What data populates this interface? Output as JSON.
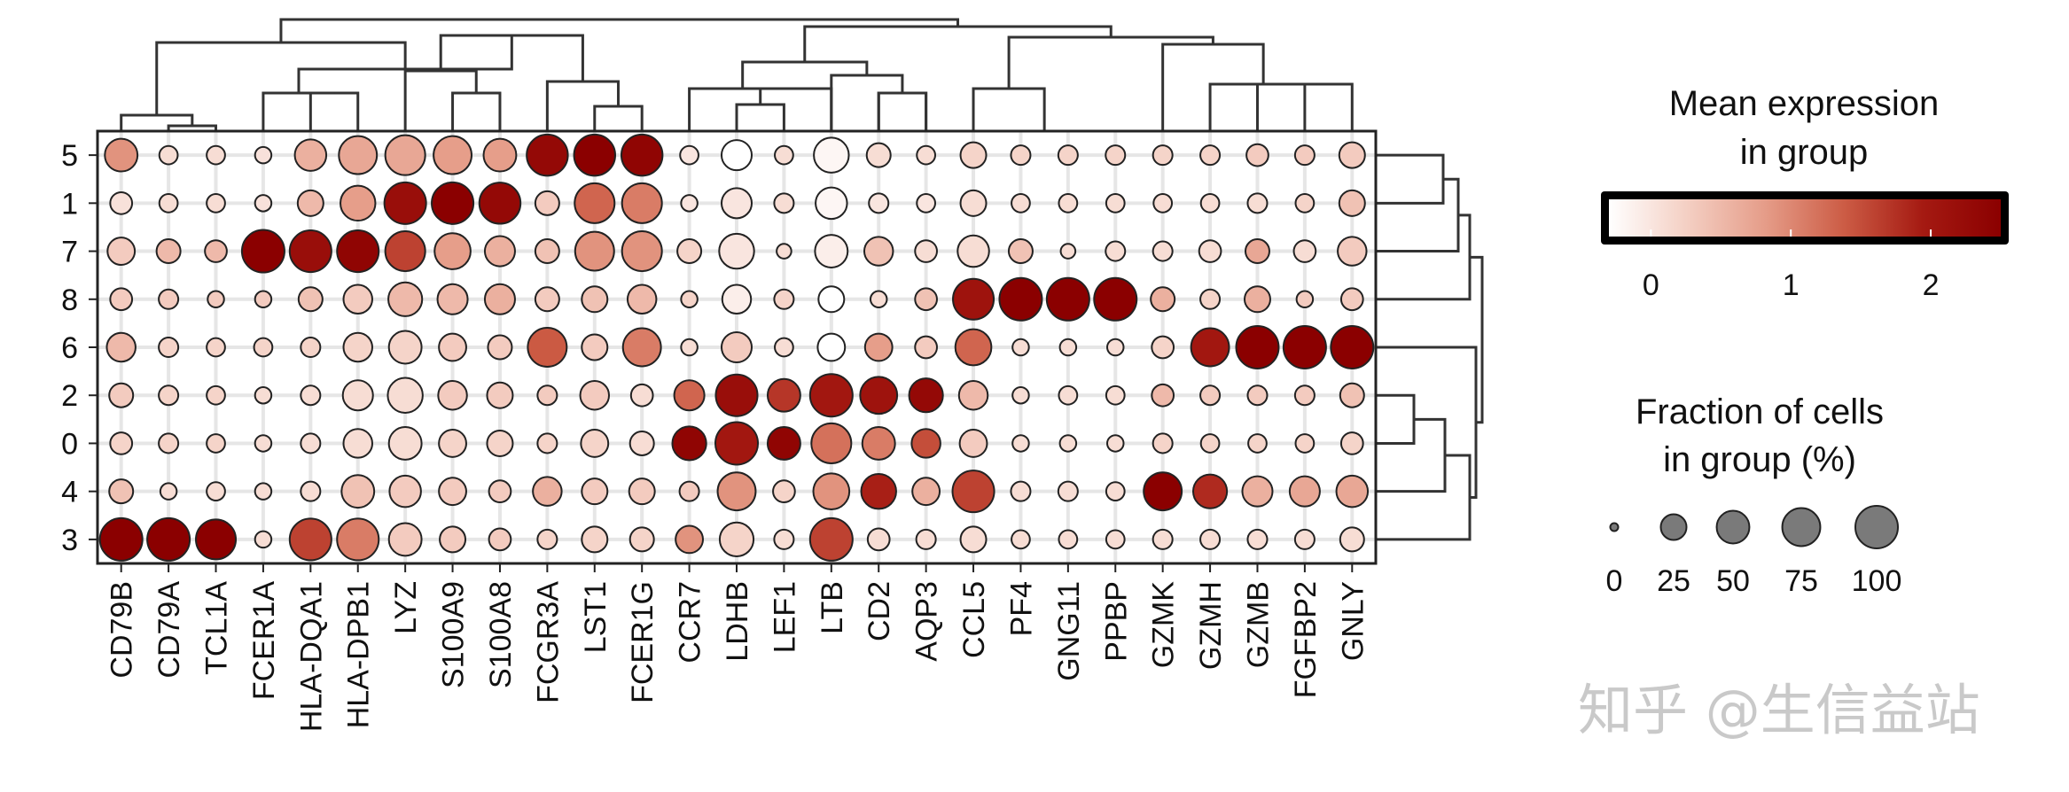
{
  "chart_data": {
    "type": "dotplot",
    "genes": [
      "CD79B",
      "CD79A",
      "TCL1A",
      "FCER1A",
      "HLA-DQA1",
      "HLA-DPB1",
      "LYZ",
      "S100A9",
      "S100A8",
      "FCGR3A",
      "LST1",
      "FCER1G",
      "CCR7",
      "LDHB",
      "LEF1",
      "LTB",
      "CD2",
      "AQP3",
      "CCL5",
      "PF4",
      "GNG11",
      "PPBP",
      "GZMK",
      "GZMH",
      "GZMB",
      "FGFBP2",
      "GNLY"
    ],
    "groups": [
      "5",
      "1",
      "7",
      "8",
      "6",
      "2",
      "0",
      "4",
      "3"
    ],
    "fraction_pct": [
      [
        50,
        8,
        8,
        5,
        45,
        75,
        85,
        75,
        50,
        92,
        92,
        92,
        8,
        40,
        8,
        60,
        20,
        8,
        25,
        10,
        10,
        10,
        10,
        10,
        15,
        10,
        25
      ],
      [
        15,
        8,
        8,
        5,
        25,
        60,
        95,
        95,
        92,
        20,
        85,
        85,
        5,
        40,
        10,
        45,
        10,
        8,
        25,
        8,
        8,
        8,
        8,
        8,
        10,
        8,
        25
      ],
      [
        30,
        20,
        15,
        100,
        95,
        95,
        85,
        65,
        40,
        20,
        80,
        85,
        20,
        60,
        3,
        50,
        35,
        15,
        45,
        20,
        3,
        10,
        10,
        15,
        20,
        15,
        35
      ],
      [
        15,
        10,
        5,
        5,
        20,
        35,
        55,
        40,
        40,
        20,
        25,
        35,
        5,
        35,
        10,
        25,
        5,
        15,
        90,
        100,
        100,
        100,
        20,
        10,
        25,
        5,
        15
      ],
      [
        35,
        10,
        8,
        8,
        10,
        35,
        50,
        30,
        20,
        80,
        25,
        75,
        5,
        40,
        8,
        30,
        30,
        15,
        65,
        5,
        5,
        5,
        15,
        75,
        100,
        100,
        100
      ],
      [
        20,
        10,
        8,
        5,
        10,
        40,
        60,
        35,
        25,
        10,
        35,
        15,
        40,
        95,
        50,
        100,
        70,
        55,
        35,
        5,
        8,
        8,
        15,
        10,
        10,
        10,
        20
      ],
      [
        15,
        10,
        8,
        5,
        10,
        35,
        50,
        30,
        25,
        10,
        30,
        20,
        55,
        100,
        50,
        85,
        50,
        35,
        30,
        5,
        5,
        5,
        10,
        8,
        8,
        8,
        15
      ],
      [
        20,
        5,
        8,
        5,
        10,
        50,
        45,
        30,
        15,
        35,
        25,
        25,
        10,
        75,
        15,
        65,
        60,
        30,
        95,
        10,
        10,
        8,
        75,
        55,
        40,
        40,
        45
      ],
      [
        100,
        100,
        85,
        5,
        95,
        95,
        50,
        25,
        15,
        10,
        25,
        20,
        30,
        55,
        10,
        100,
        15,
        10,
        25,
        8,
        8,
        8,
        10,
        10,
        10,
        10,
        20
      ]
    ],
    "mean_expression": [
      [
        0.9,
        0.1,
        0.1,
        0.05,
        0.6,
        0.7,
        0.7,
        0.8,
        0.8,
        2.3,
        2.5,
        2.4,
        0.0,
        -0.3,
        0.1,
        -0.2,
        0.1,
        0.1,
        0.2,
        0.2,
        0.2,
        0.2,
        0.2,
        0.2,
        0.3,
        0.3,
        0.3
      ],
      [
        0.05,
        0.1,
        0.1,
        0.05,
        0.5,
        0.8,
        2.2,
        2.5,
        2.3,
        0.3,
        1.3,
        1.1,
        0.0,
        0.0,
        0.1,
        -0.2,
        0.0,
        0.0,
        0.1,
        0.1,
        0.1,
        0.1,
        0.1,
        0.1,
        0.1,
        0.2,
        0.4
      ],
      [
        0.3,
        0.5,
        0.5,
        2.5,
        2.2,
        2.4,
        1.6,
        0.8,
        0.6,
        0.4,
        0.9,
        0.9,
        0.2,
        0.0,
        0.1,
        -0.1,
        0.4,
        0.1,
        0.1,
        0.4,
        0.1,
        0.1,
        0.1,
        0.1,
        0.7,
        0.1,
        0.3
      ],
      [
        0.3,
        0.3,
        0.3,
        0.3,
        0.4,
        0.3,
        0.5,
        0.5,
        0.6,
        0.3,
        0.4,
        0.5,
        0.2,
        -0.1,
        0.2,
        -0.3,
        0.1,
        0.4,
        2.1,
        2.5,
        2.5,
        2.5,
        0.6,
        0.2,
        0.6,
        0.3,
        0.3
      ],
      [
        0.5,
        0.2,
        0.2,
        0.2,
        0.2,
        0.2,
        0.2,
        0.3,
        0.3,
        1.4,
        0.3,
        1.1,
        0.1,
        0.3,
        0.1,
        -0.4,
        0.8,
        0.3,
        1.3,
        0.1,
        0.1,
        0.1,
        0.2,
        2.0,
        2.5,
        2.5,
        2.5
      ],
      [
        0.3,
        0.2,
        0.2,
        0.1,
        0.1,
        0.1,
        0.1,
        0.3,
        0.3,
        0.3,
        0.3,
        0.1,
        1.3,
        2.2,
        1.7,
        2.0,
        2.1,
        2.3,
        0.5,
        0.1,
        0.1,
        0.1,
        0.5,
        0.3,
        0.3,
        0.3,
        0.4
      ],
      [
        0.2,
        0.2,
        0.2,
        0.1,
        0.1,
        0.1,
        0.1,
        0.2,
        0.2,
        0.2,
        0.2,
        0.1,
        2.4,
        2.0,
        2.4,
        1.2,
        1.1,
        1.5,
        0.3,
        0.1,
        0.1,
        0.1,
        0.2,
        0.2,
        0.2,
        0.2,
        0.2
      ],
      [
        0.4,
        0.1,
        0.1,
        0.1,
        0.1,
        0.4,
        0.3,
        0.3,
        0.3,
        0.6,
        0.3,
        0.3,
        0.3,
        0.9,
        0.2,
        0.9,
        1.9,
        0.6,
        1.6,
        0.1,
        0.1,
        0.1,
        2.5,
        1.8,
        0.6,
        0.7,
        0.7
      ],
      [
        2.5,
        2.5,
        2.5,
        0.1,
        1.6,
        1.1,
        0.3,
        0.3,
        0.3,
        0.2,
        0.2,
        0.2,
        0.9,
        0.2,
        0.1,
        1.6,
        0.1,
        0.1,
        0.1,
        0.1,
        0.1,
        0.1,
        0.1,
        0.1,
        0.1,
        0.1,
        0.1
      ]
    ],
    "colorbar": {
      "title_line1": "Mean expression",
      "title_line2": "in group",
      "domain": [
        -0.3,
        2.5
      ],
      "ticks": [
        0,
        1,
        2
      ],
      "colors": [
        "#ffffff",
        "#f4cfc3",
        "#e59c88",
        "#cc5c45",
        "#a51a12",
        "#8b0000"
      ]
    },
    "size_legend": {
      "title_line1": "Fraction of cells",
      "title_line2": "in group (%)",
      "values": [
        0,
        25,
        50,
        75,
        100
      ]
    }
  },
  "watermark": "知乎 @生信益站"
}
